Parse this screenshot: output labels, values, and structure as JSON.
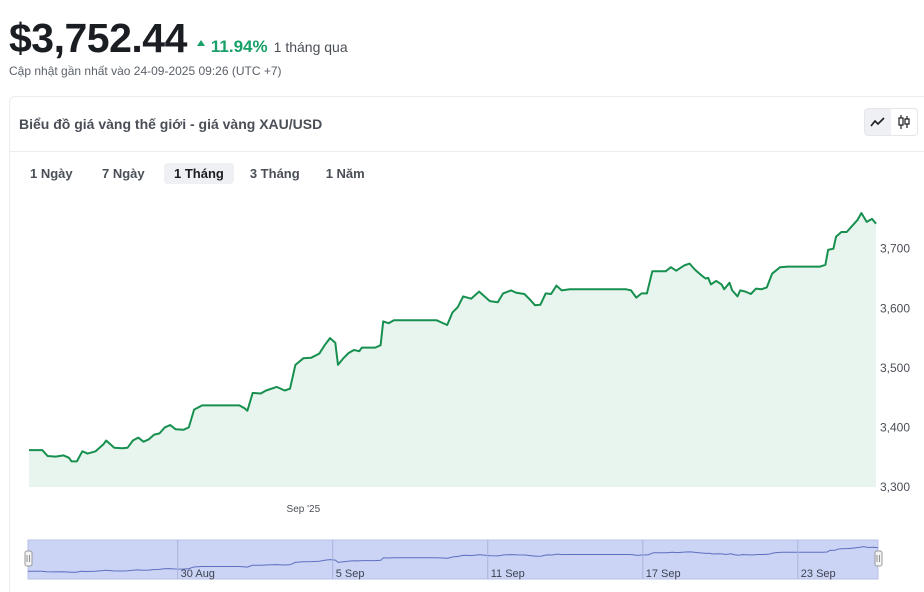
{
  "header": {
    "price": "$3,752.44",
    "change_pct": "11.94%",
    "change_period": "1 tháng qua",
    "updated": "Cập nhật gần nhất vào 24-09-2025 09:26 (UTC +7)"
  },
  "card": {
    "title": "Biểu đồ giá vàng thế giới - giá vàng XAU/USD",
    "chart_type_options": [
      "line-chart-icon",
      "candlestick-icon"
    ],
    "active_chart_type": "line-chart-icon"
  },
  "ranges": [
    {
      "label": "1 Ngày",
      "active": false
    },
    {
      "label": "7 Ngày",
      "active": false
    },
    {
      "label": "1 Tháng",
      "active": true
    },
    {
      "label": "3 Tháng",
      "active": false
    },
    {
      "label": "1 Năm",
      "active": false
    }
  ],
  "colors": {
    "line": "#17904f",
    "area": "#e8f5ee",
    "up": "#17a168",
    "navigator_bg": "#cbd4f5",
    "navigator_line": "#5c6fbf"
  },
  "chart_data": {
    "type": "line",
    "ylim": [
      3300,
      3770
    ],
    "yticks": [
      "3,300",
      "3,400",
      "3,500",
      "3,600",
      "3,700"
    ],
    "ytick_values": [
      3300,
      3400,
      3500,
      3600,
      3700
    ],
    "xticks": [
      {
        "label": "Sep '25",
        "x": 10.3
      }
    ],
    "x_range": [
      0,
      31
    ],
    "navigator_ticks": [
      {
        "label": "30 Aug",
        "x": 5.6
      },
      {
        "label": "5 Sep",
        "x": 11.4
      },
      {
        "label": "11 Sep",
        "x": 17.2
      },
      {
        "label": "17 Sep",
        "x": 23.0
      },
      {
        "label": "23 Sep",
        "x": 28.8
      }
    ],
    "series": [
      {
        "values": [
          [
            0.0,
            3362
          ],
          [
            0.5,
            3362
          ],
          [
            0.7,
            3352
          ],
          [
            1.0,
            3351
          ],
          [
            1.3,
            3353
          ],
          [
            1.5,
            3349
          ],
          [
            1.6,
            3343
          ],
          [
            1.8,
            3343
          ],
          [
            2.0,
            3360
          ],
          [
            2.2,
            3356
          ],
          [
            2.5,
            3360
          ],
          [
            2.8,
            3372
          ],
          [
            2.9,
            3378
          ],
          [
            3.2,
            3366
          ],
          [
            3.5,
            3365
          ],
          [
            3.7,
            3366
          ],
          [
            3.9,
            3378
          ],
          [
            4.1,
            3383
          ],
          [
            4.3,
            3376
          ],
          [
            4.5,
            3380
          ],
          [
            4.7,
            3388
          ],
          [
            4.9,
            3390
          ],
          [
            5.1,
            3400
          ],
          [
            5.3,
            3404
          ],
          [
            5.5,
            3397
          ],
          [
            5.8,
            3396
          ],
          [
            6.0,
            3400
          ],
          [
            6.2,
            3430
          ],
          [
            6.5,
            3437
          ],
          [
            6.9,
            3437
          ],
          [
            7.5,
            3437
          ],
          [
            7.9,
            3437
          ],
          [
            8.1,
            3432
          ],
          [
            8.2,
            3428
          ],
          [
            8.4,
            3458
          ],
          [
            8.7,
            3457
          ],
          [
            8.9,
            3462
          ],
          [
            9.3,
            3468
          ],
          [
            9.6,
            3462
          ],
          [
            9.8,
            3465
          ],
          [
            10.0,
            3505
          ],
          [
            10.3,
            3516
          ],
          [
            10.6,
            3517
          ],
          [
            10.9,
            3524
          ],
          [
            11.1,
            3538
          ],
          [
            11.3,
            3550
          ],
          [
            11.5,
            3542
          ],
          [
            11.6,
            3505
          ],
          [
            11.8,
            3516
          ],
          [
            12.0,
            3525
          ],
          [
            12.2,
            3530
          ],
          [
            12.4,
            3528
          ],
          [
            12.5,
            3534
          ],
          [
            12.7,
            3534
          ],
          [
            13.0,
            3534
          ],
          [
            13.2,
            3538
          ],
          [
            13.3,
            3578
          ],
          [
            13.5,
            3575
          ],
          [
            13.7,
            3580
          ],
          [
            14.2,
            3580
          ],
          [
            14.8,
            3580
          ],
          [
            15.3,
            3580
          ],
          [
            15.5,
            3576
          ],
          [
            15.7,
            3572
          ],
          [
            15.9,
            3593
          ],
          [
            16.1,
            3602
          ],
          [
            16.3,
            3620
          ],
          [
            16.6,
            3616
          ],
          [
            16.9,
            3628
          ],
          [
            17.1,
            3620
          ],
          [
            17.3,
            3612
          ],
          [
            17.6,
            3610
          ],
          [
            17.8,
            3625
          ],
          [
            18.1,
            3630
          ],
          [
            18.3,
            3626
          ],
          [
            18.6,
            3624
          ],
          [
            18.8,
            3615
          ],
          [
            19.0,
            3605
          ],
          [
            19.2,
            3606
          ],
          [
            19.4,
            3625
          ],
          [
            19.6,
            3624
          ],
          [
            19.8,
            3638
          ],
          [
            20.0,
            3630
          ],
          [
            20.3,
            3632
          ],
          [
            20.6,
            3632
          ],
          [
            21.2,
            3632
          ],
          [
            21.8,
            3632
          ],
          [
            22.4,
            3632
          ],
          [
            22.6,
            3630
          ],
          [
            22.8,
            3618
          ],
          [
            23.0,
            3625
          ],
          [
            23.2,
            3625
          ],
          [
            23.4,
            3662
          ],
          [
            23.7,
            3662
          ],
          [
            23.9,
            3662
          ],
          [
            24.1,
            3669
          ],
          [
            24.3,
            3663
          ],
          [
            24.6,
            3672
          ],
          [
            24.8,
            3675
          ],
          [
            25.0,
            3665
          ],
          [
            25.2,
            3657
          ],
          [
            25.4,
            3650
          ],
          [
            25.5,
            3651
          ],
          [
            25.6,
            3640
          ],
          [
            25.8,
            3646
          ],
          [
            26.0,
            3640
          ],
          [
            26.1,
            3632
          ],
          [
            26.3,
            3643
          ],
          [
            26.4,
            3630
          ],
          [
            26.6,
            3620
          ],
          [
            26.7,
            3630
          ],
          [
            26.9,
            3628
          ],
          [
            27.1,
            3624
          ],
          [
            27.3,
            3633
          ],
          [
            27.5,
            3632
          ],
          [
            27.7,
            3635
          ],
          [
            27.9,
            3658
          ],
          [
            28.2,
            3669
          ],
          [
            28.5,
            3670
          ],
          [
            28.9,
            3670
          ],
          [
            29.3,
            3670
          ],
          [
            29.7,
            3670
          ],
          [
            29.9,
            3673
          ],
          [
            30.0,
            3698
          ],
          [
            30.2,
            3700
          ],
          [
            30.3,
            3720
          ],
          [
            30.5,
            3728
          ],
          [
            30.7,
            3728
          ],
          [
            30.9,
            3738
          ],
          [
            31.1,
            3748
          ],
          [
            31.25,
            3760
          ],
          [
            31.45,
            3745
          ],
          [
            31.65,
            3750
          ],
          [
            31.8,
            3742
          ]
        ]
      }
    ]
  }
}
